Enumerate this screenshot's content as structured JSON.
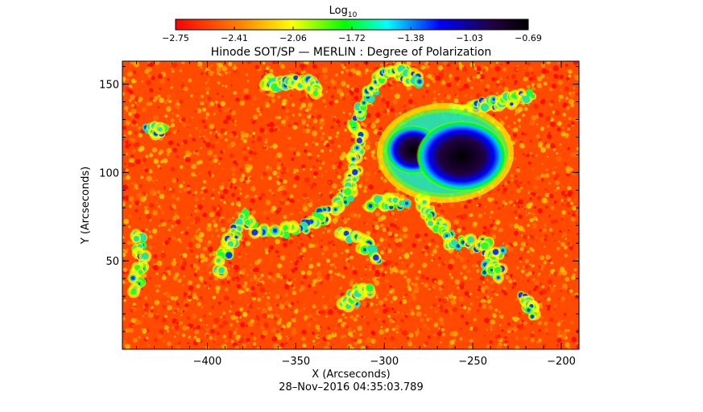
{
  "chart_data": {
    "type": "heatmap",
    "title": "Hinode SOT/SP — MERLIN : Degree of Polarization",
    "xlabel": "X (Arcseconds)",
    "ylabel": "Y (Arcseconds)",
    "timestamp": "28–Nov–2016  04:35:03.789",
    "colorbar": {
      "label_base": "Log",
      "label_sub": "10",
      "ticks": [
        "−2.75",
        "−2.41",
        "−2.06",
        "−1.72",
        "−1.38",
        "−1.03",
        "−0.69"
      ],
      "range": [
        -2.75,
        -0.69
      ],
      "colormap": [
        "#ff0000",
        "#ff8000",
        "#ffff00",
        "#00ff00",
        "#00ffff",
        "#0000ff",
        "#200040",
        "#000000"
      ]
    },
    "xlim": [
      -448,
      -190
    ],
    "ylim": [
      0,
      163
    ],
    "xticks": [
      -400,
      -350,
      -300,
      -250,
      -200
    ],
    "xtick_labels": [
      "−400",
      "−350",
      "−300",
      "−250",
      "−200"
    ],
    "yticks": [
      50,
      100,
      150
    ],
    "ytick_labels": [
      "50",
      "100",
      "150"
    ],
    "features": [
      {
        "name": "sunspot umbra (left)",
        "x": -283,
        "y": 116,
        "value": -0.8
      },
      {
        "name": "sunspot umbra (right)",
        "x": -252,
        "y": 113,
        "value": -0.69
      }
    ]
  }
}
